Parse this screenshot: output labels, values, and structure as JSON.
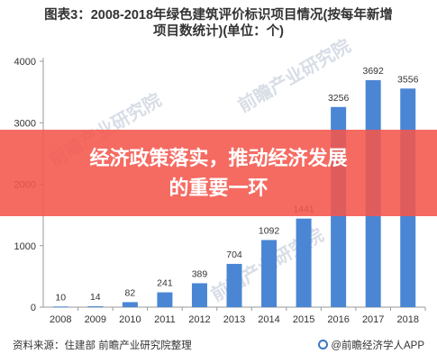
{
  "title_line1": "图表3：2008-2018年绿色建筑评价标识项目情况(按每年新增",
  "title_line2": "项目数统计)(单位：个)",
  "banner": {
    "line1": "经济政策落实，推动经济发展",
    "line2": "的重要一环"
  },
  "source": "资料来源：住建部 前瞻产业研究院整理",
  "credit": "@前瞻经济学人APP",
  "watermark": "前瞻产业研究院",
  "colors": {
    "bar": "#4a86d4",
    "banner": "#f4564c",
    "axis": "#999999"
  },
  "chart_data": {
    "type": "bar",
    "categories": [
      "2008",
      "2009",
      "2010",
      "2011",
      "2012",
      "2013",
      "2014",
      "2015",
      "2016",
      "2017",
      "2018"
    ],
    "values": [
      10,
      14,
      82,
      241,
      389,
      704,
      1092,
      1441,
      3256,
      3692,
      3556
    ],
    "ylim": [
      0,
      4000
    ],
    "yticks": [
      0,
      1000,
      2000,
      3000,
      4000
    ],
    "grid": false,
    "data_labels": true
  }
}
